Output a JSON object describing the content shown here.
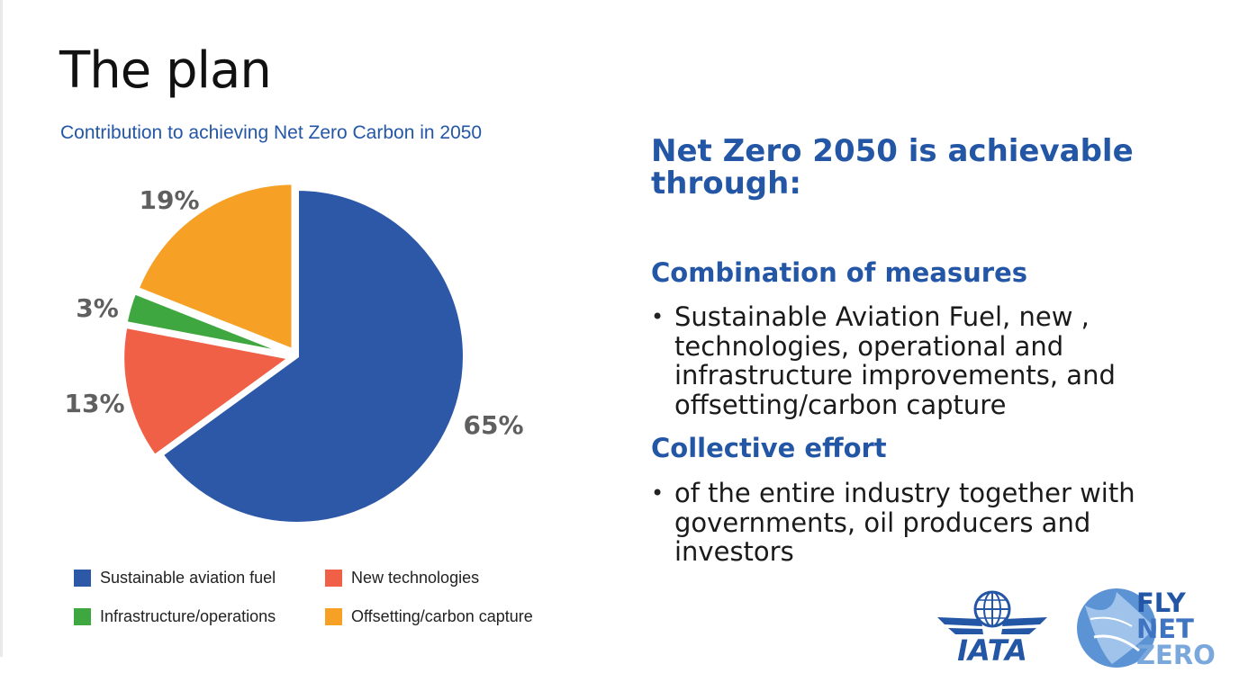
{
  "slide": {
    "title": "The plan"
  },
  "chart_data": {
    "type": "pie",
    "title": "Contribution to achieving Net Zero Carbon in 2050",
    "slices": [
      {
        "label": "Sustainable aviation fuel",
        "value": 65,
        "display": "65%",
        "color": "#2d58a8"
      },
      {
        "label": "New technologies",
        "value": 13,
        "display": "13%",
        "color": "#ef6047"
      },
      {
        "label": "Infrastructure/operations",
        "value": 3,
        "display": "3%",
        "color": "#3fa73f"
      },
      {
        "label": "Offsetting/carbon capture",
        "value": 19,
        "display": "19%",
        "color": "#f6a125"
      }
    ],
    "start_angle_deg": 0,
    "direction": "clockwise",
    "legend_position": "bottom"
  },
  "legend": [
    {
      "label": "Sustainable aviation fuel",
      "color": "#2d58a8"
    },
    {
      "label": "New technologies",
      "color": "#ef6047"
    },
    {
      "label": "Infrastructure/operations",
      "color": "#3fa73f"
    },
    {
      "label": "Offsetting/carbon capture",
      "color": "#f6a125"
    }
  ],
  "right": {
    "headline": "Net Zero 2050 is achievable through:",
    "sections": [
      {
        "title": "Combination of measures",
        "bullet": "Sustainable Aviation Fuel, new , technologies, operational and infrastructure improvements, and offsetting/carbon capture"
      },
      {
        "title": "Collective effort",
        "bullet": "of the entire industry together with governments, oil producers and investors"
      }
    ]
  },
  "logos": {
    "iata": "IATA",
    "fly": "FLY",
    "net": "NET",
    "zero": "ZERO",
    "brand_blue": "#2456a6"
  }
}
